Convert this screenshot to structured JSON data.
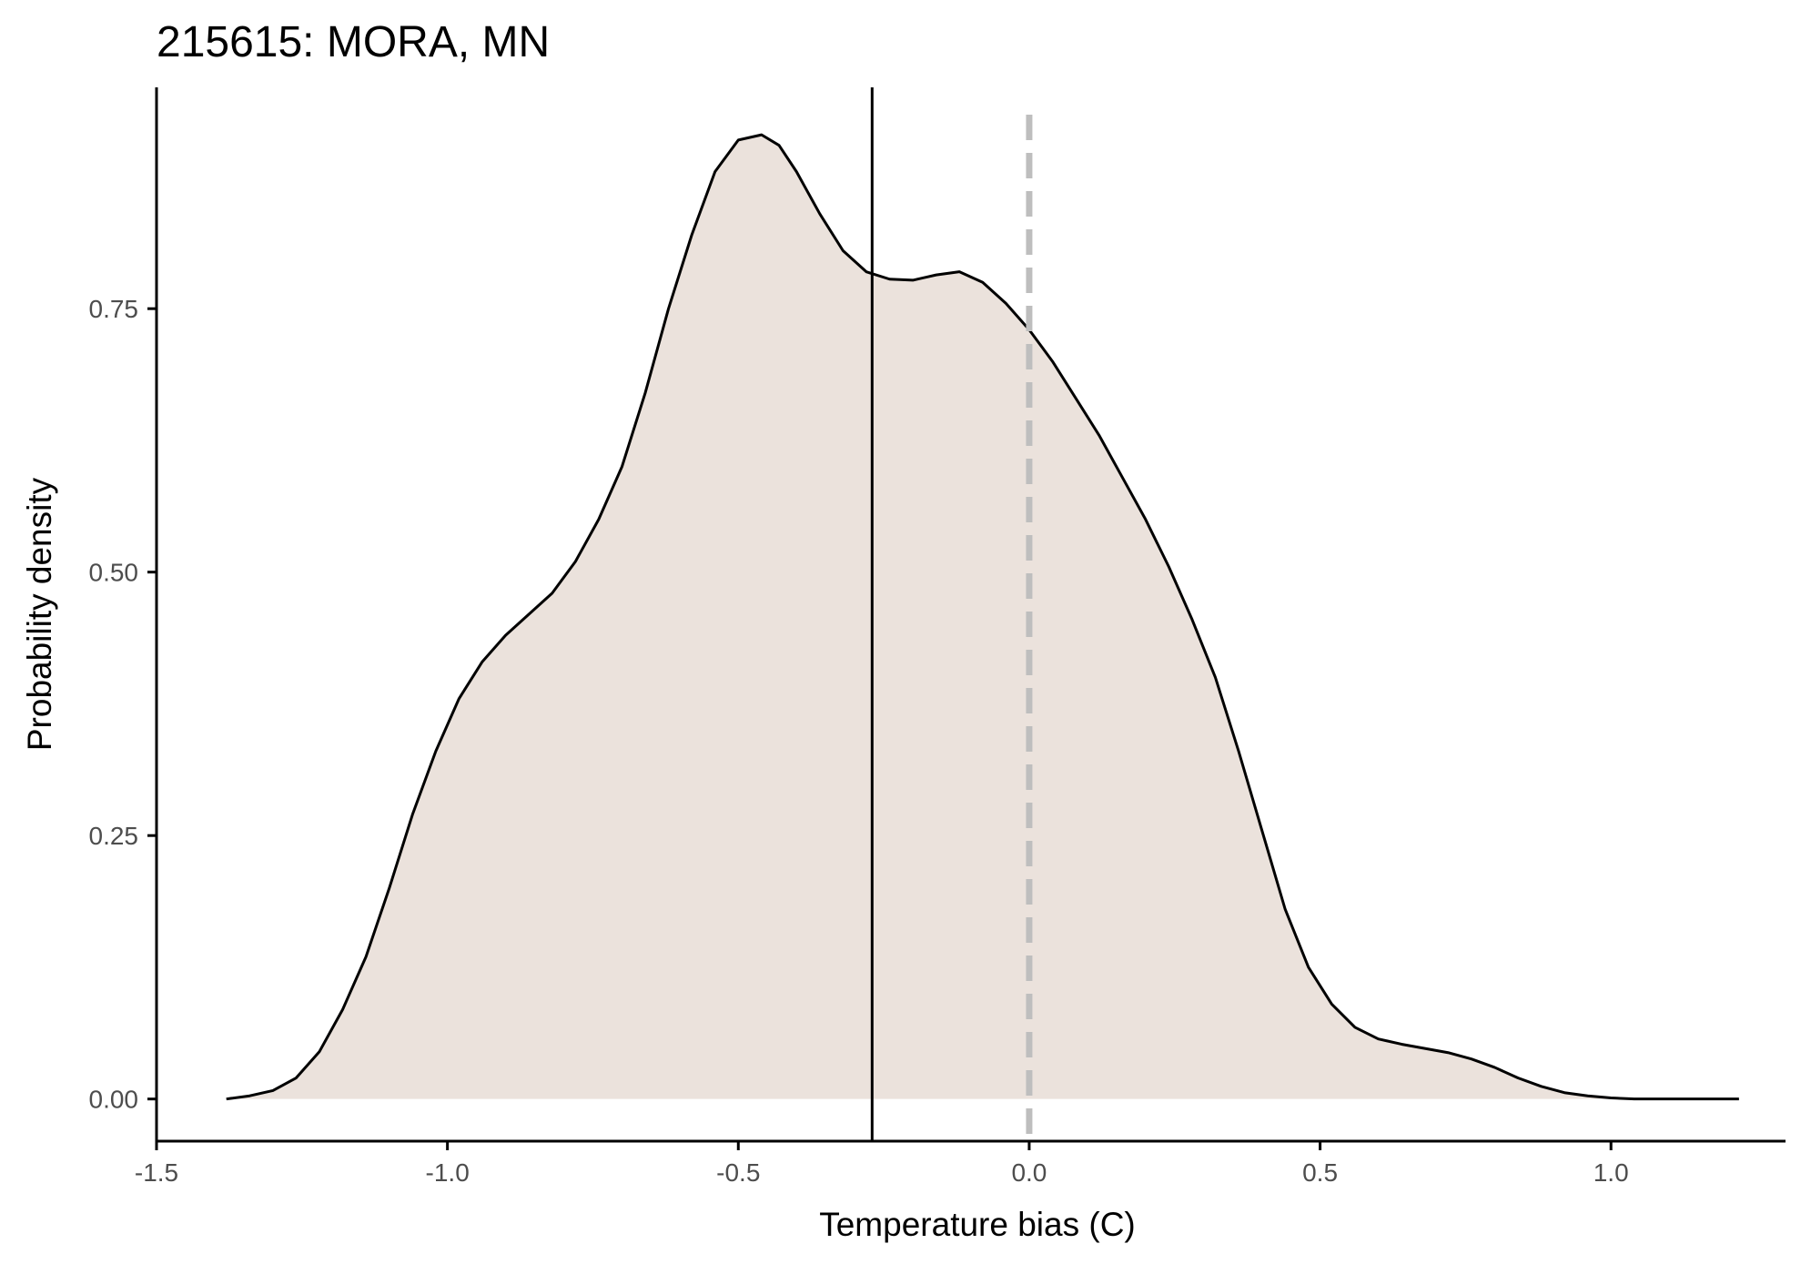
{
  "chart_data": {
    "type": "area",
    "title": "215615: MORA, MN",
    "xlabel": "Temperature bias (C)",
    "ylabel": "Probability density",
    "xlim": [
      -1.5,
      1.3
    ],
    "ylim": [
      -0.04,
      0.96
    ],
    "x_ticks": [
      -1.5,
      -1.0,
      -0.5,
      0.0,
      0.5,
      1.0
    ],
    "x_tick_labels": [
      "-1.5",
      "-1.0",
      "-0.5",
      "0.0",
      "0.5",
      "1.0"
    ],
    "y_ticks": [
      0.0,
      0.25,
      0.5,
      0.75
    ],
    "y_tick_labels": [
      "0.00",
      "0.25",
      "0.50",
      "0.75"
    ],
    "grid": false,
    "colors": {
      "fill": "#ebe2dc",
      "line": "#000000",
      "reference_line": "#bebebe",
      "axis": "#000000"
    },
    "series": [
      {
        "x": [
          -1.38,
          -1.34,
          -1.3,
          -1.26,
          -1.22,
          -1.18,
          -1.14,
          -1.1,
          -1.06,
          -1.02,
          -0.98,
          -0.94,
          -0.9,
          -0.86,
          -0.82,
          -0.78,
          -0.74,
          -0.7,
          -0.66,
          -0.62,
          -0.58,
          -0.54,
          -0.5,
          -0.46,
          -0.43,
          -0.4,
          -0.36,
          -0.32,
          -0.28,
          -0.24,
          -0.2,
          -0.16,
          -0.12,
          -0.08,
          -0.04,
          0.0,
          0.04,
          0.08,
          0.12,
          0.16,
          0.2,
          0.24,
          0.28,
          0.32,
          0.36,
          0.4,
          0.44,
          0.48,
          0.52,
          0.56,
          0.6,
          0.64,
          0.68,
          0.72,
          0.76,
          0.8,
          0.84,
          0.88,
          0.92,
          0.96,
          1.0,
          1.04,
          1.08,
          1.12,
          1.16,
          1.2,
          1.22
        ],
        "y": [
          0.0,
          0.003,
          0.008,
          0.02,
          0.045,
          0.085,
          0.135,
          0.2,
          0.27,
          0.33,
          0.38,
          0.415,
          0.44,
          0.46,
          0.48,
          0.51,
          0.55,
          0.6,
          0.67,
          0.75,
          0.82,
          0.88,
          0.91,
          0.915,
          0.905,
          0.88,
          0.84,
          0.805,
          0.785,
          0.778,
          0.777,
          0.782,
          0.785,
          0.775,
          0.755,
          0.73,
          0.7,
          0.665,
          0.63,
          0.59,
          0.55,
          0.505,
          0.455,
          0.4,
          0.33,
          0.255,
          0.18,
          0.125,
          0.09,
          0.068,
          0.057,
          0.052,
          0.048,
          0.044,
          0.038,
          0.03,
          0.02,
          0.012,
          0.006,
          0.003,
          0.001,
          0.0,
          0.0,
          0.0,
          0.0,
          0.0,
          0.0
        ]
      }
    ],
    "reference_lines": [
      {
        "axis": "x",
        "value": -0.27,
        "style": "solid"
      },
      {
        "axis": "x",
        "value": 0.0,
        "style": "dashed"
      }
    ]
  }
}
